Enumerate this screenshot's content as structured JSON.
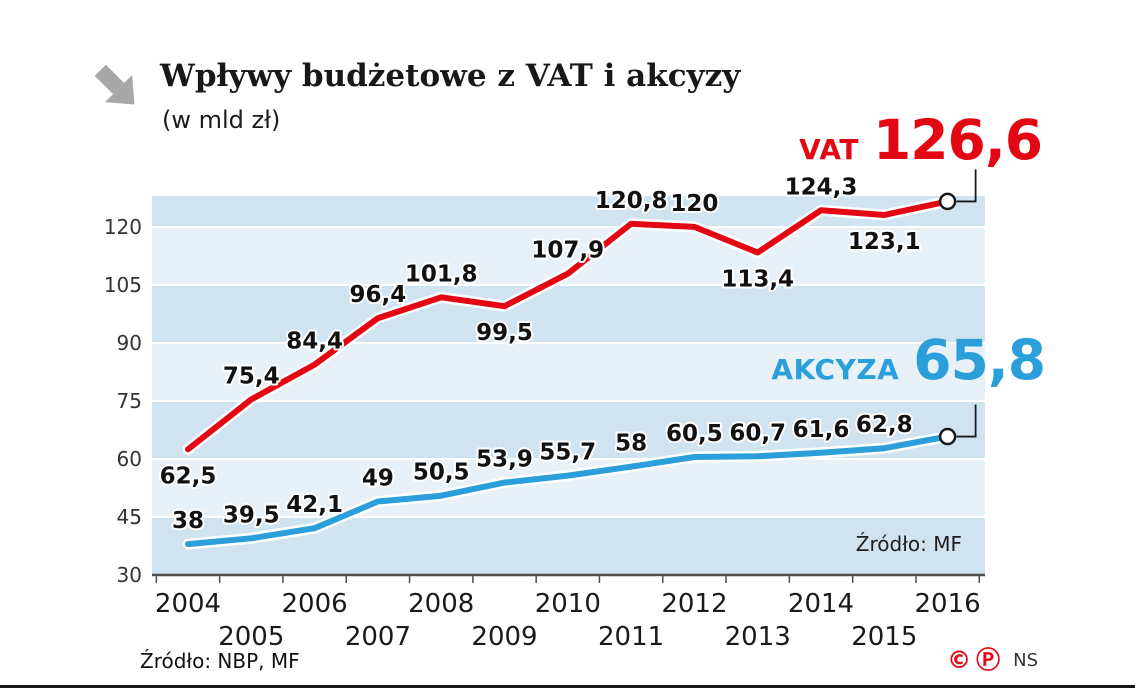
{
  "header": {
    "title": "Wpływy budżetowe z VAT i akcyzy",
    "subtitle": "(w mld zł)"
  },
  "callouts": {
    "vat": {
      "label": "VAT",
      "value": "126,6",
      "color": "#e30613"
    },
    "akcyza": {
      "label": "AKCYZA",
      "value": "65,8",
      "color": "#2b9fd9"
    }
  },
  "sources": {
    "chart": "Źródło: MF",
    "footer": "Źródło: NBP, MF"
  },
  "footer": {
    "copyright": "©",
    "phonogram": "Ⓟ",
    "agency": "NS"
  },
  "chart_data": {
    "type": "line",
    "title": "Wpływy budżetowe z VAT i akcyzy (w mld zł)",
    "categories": [
      "2004",
      "2005",
      "2006",
      "2007",
      "2008",
      "2009",
      "2010",
      "2011",
      "2012",
      "2013",
      "2014",
      "2015",
      "2016"
    ],
    "series": [
      {
        "name": "VAT",
        "color": "#e30613",
        "values": [
          62.5,
          75.4,
          84.4,
          96.4,
          101.8,
          99.5,
          107.9,
          120.8,
          120,
          113.4,
          124.3,
          123.1,
          126.6
        ],
        "labels": [
          "62,5",
          "75,4",
          "84,4",
          "96,4",
          "101,8",
          "99,5",
          "107,9",
          "120,8",
          "120",
          "113,4",
          "124,3",
          "123,1",
          ""
        ],
        "label_side": [
          "below",
          "above",
          "above",
          "above",
          "above",
          "below",
          "above",
          "above",
          "above",
          "below",
          "above",
          "below",
          ""
        ]
      },
      {
        "name": "AKCYZA",
        "color": "#2b9fd9",
        "values": [
          38,
          39.5,
          42.1,
          49,
          50.5,
          53.9,
          55.7,
          58,
          60.5,
          60.7,
          61.6,
          62.8,
          65.8
        ],
        "labels": [
          "38",
          "39,5",
          "42,1",
          "49",
          "50,5",
          "53,9",
          "55,7",
          "58",
          "60,5",
          "60,7",
          "61,6",
          "62,8",
          ""
        ],
        "label_side": [
          "above",
          "above",
          "above",
          "above",
          "above",
          "above",
          "above",
          "above",
          "above",
          "above",
          "above",
          "above",
          ""
        ]
      }
    ],
    "ylim": [
      30,
      128
    ],
    "yticks": [
      30,
      45,
      60,
      75,
      90,
      105,
      120
    ],
    "xlabel": "",
    "ylabel": "mld zł",
    "grid": true,
    "legend_position": "callouts-right",
    "band_colors": [
      "#cfe3f0",
      "#e8f1f8"
    ]
  }
}
